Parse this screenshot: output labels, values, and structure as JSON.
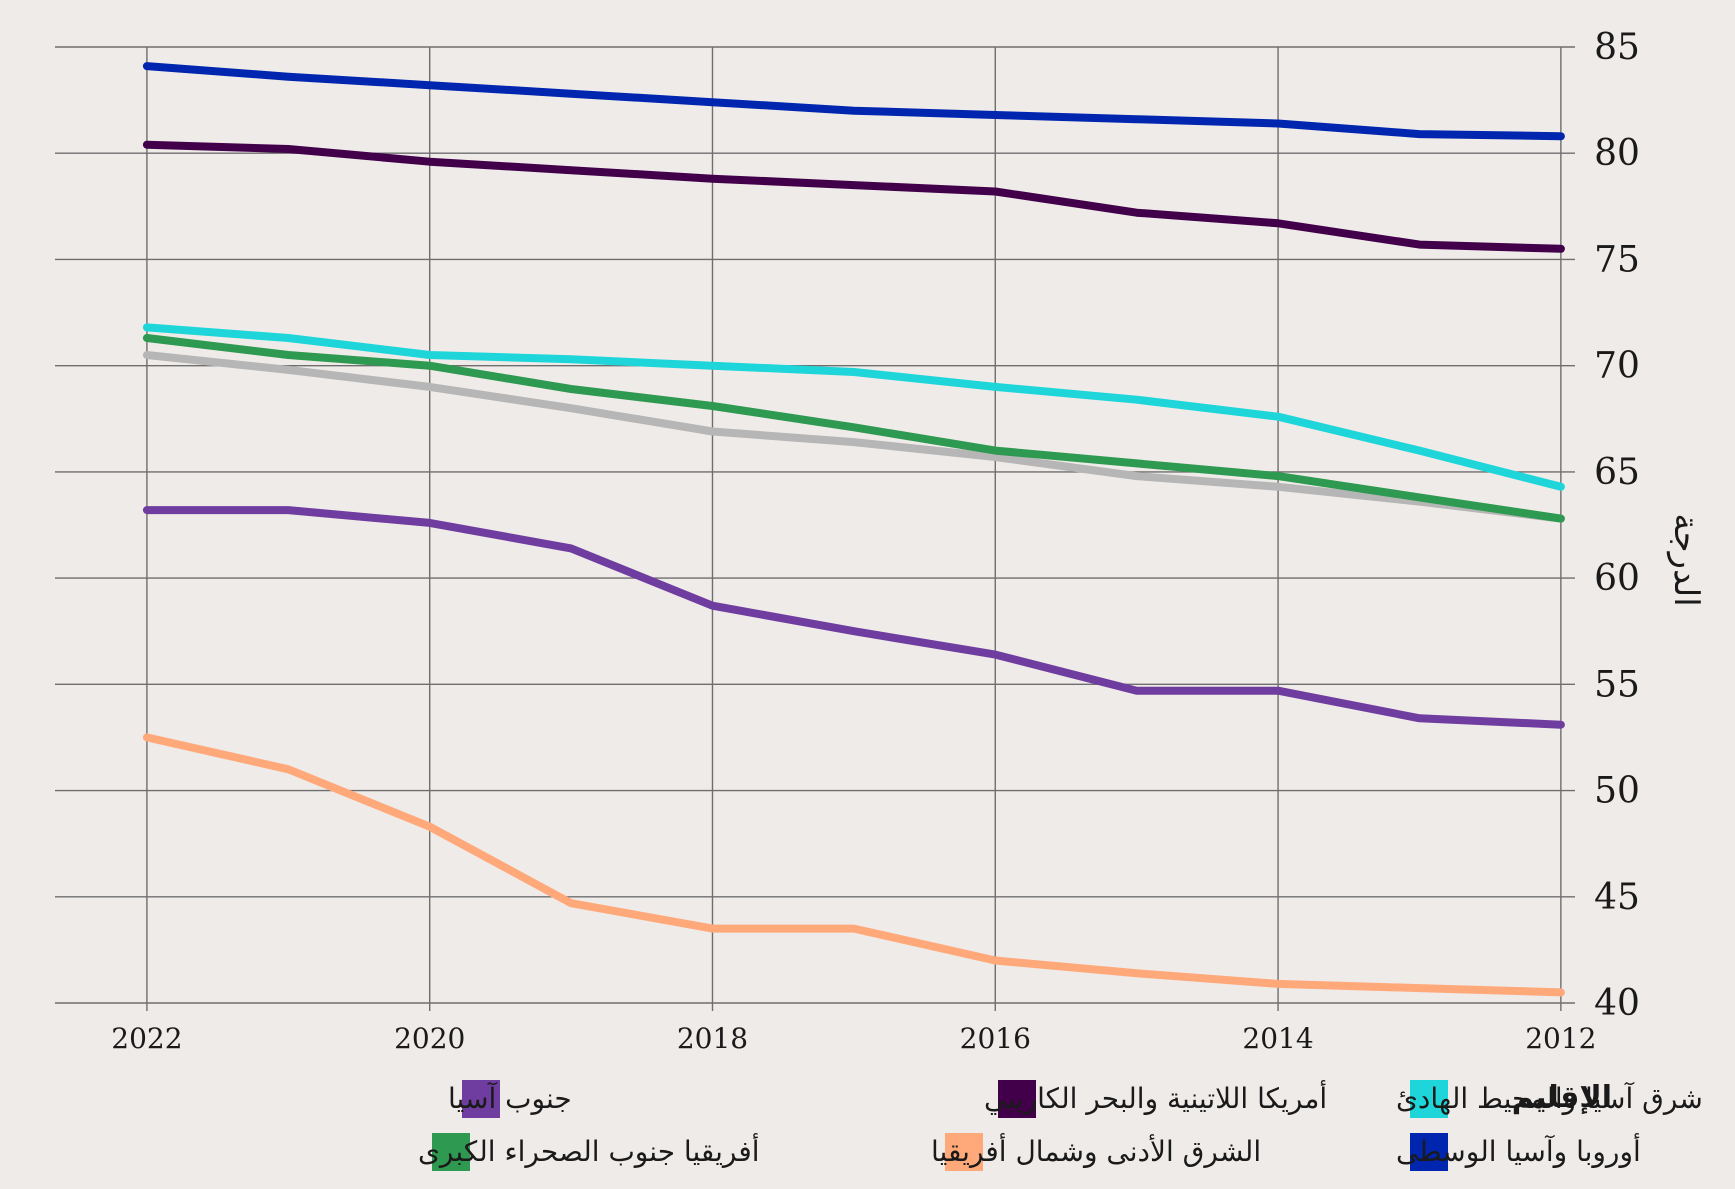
{
  "chart_data": {
    "type": "line",
    "ylabel": "الدرجة",
    "ylim": [
      40,
      85
    ],
    "yticks": [
      40,
      45,
      50,
      55,
      60,
      65,
      70,
      75,
      80,
      85
    ],
    "xlim": [
      2012,
      2022
    ],
    "xticks": [
      2022,
      2020,
      2018,
      2016,
      2014,
      2012
    ],
    "x_reversed": true,
    "grid": true,
    "legend_title": "الإقليم",
    "legend_position": "bottom",
    "x": [
      2012,
      2013,
      2014,
      2015,
      2016,
      2017,
      2018,
      2019,
      2020,
      2021,
      2022
    ],
    "series": [
      {
        "name": "شرق آسيا والمحيط الهادئ",
        "color": "#1ed6d9",
        "values": [
          64.3,
          66.0,
          67.6,
          68.4,
          69.0,
          69.7,
          70.0,
          70.3,
          70.5,
          71.3,
          71.8
        ]
      },
      {
        "name": "أمريكا اللاتينية والبحر الكاريبي",
        "color": "#42004b",
        "values": [
          75.5,
          75.7,
          76.7,
          77.2,
          78.2,
          78.5,
          78.8,
          79.2,
          79.6,
          80.2,
          80.4
        ]
      },
      {
        "name": "جنوب آسيا",
        "color": "#6f3d9f",
        "values": [
          53.1,
          53.4,
          54.7,
          54.7,
          56.4,
          57.5,
          58.7,
          61.4,
          62.6,
          63.2,
          63.2
        ]
      },
      {
        "name": "أوروبا وآسيا الوسطى",
        "color": "#0026b0",
        "values": [
          80.8,
          80.9,
          81.4,
          81.6,
          81.8,
          82.0,
          82.4,
          82.8,
          83.2,
          83.6,
          84.1
        ]
      },
      {
        "name": "الشرق الأدنى وشمال أفريقيا",
        "color": "#ffa97b",
        "values": [
          40.5,
          40.7,
          40.9,
          41.4,
          42.0,
          43.5,
          43.5,
          44.7,
          48.3,
          51.0,
          52.5
        ]
      },
      {
        "name": "أفريقيا جنوب الصحراء الكبرى",
        "color": "#2e9950",
        "values": [
          62.8,
          63.8,
          64.8,
          65.4,
          66.0,
          67.1,
          68.1,
          68.9,
          70.0,
          70.5,
          71.3
        ]
      },
      {
        "name": "",
        "color": "#b6b6b6",
        "values": [
          62.8,
          63.6,
          64.3,
          64.8,
          65.7,
          66.4,
          66.9,
          68.0,
          69.0,
          69.8,
          70.5
        ]
      }
    ]
  }
}
